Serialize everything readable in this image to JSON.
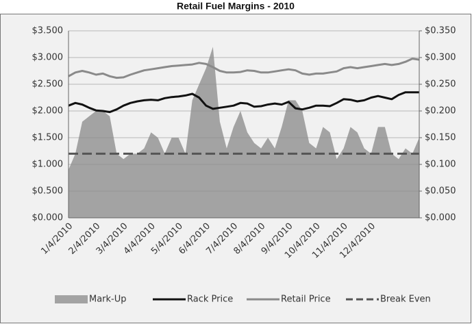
{
  "chart_data": {
    "type": "combo",
    "title": "Retail Fuel Margins - 2010",
    "categories": [
      "1/4/2010",
      null,
      null,
      null,
      "2/4/2010",
      null,
      null,
      null,
      "3/4/2010",
      null,
      null,
      null,
      "4/4/2010",
      null,
      null,
      null,
      "5/4/2010",
      null,
      null,
      null,
      "6/4/2010",
      null,
      null,
      null,
      "7/4/2010",
      null,
      null,
      null,
      "8/4/2010",
      null,
      null,
      null,
      "9/4/2010",
      null,
      null,
      null,
      "10/4/2010",
      null,
      null,
      null,
      "11/4/2010",
      null,
      null,
      null,
      "12/4/2010",
      null,
      null,
      null,
      null,
      null,
      null,
      null
    ],
    "series": [
      {
        "name": "Mark-Up",
        "type": "area",
        "axis": "y2",
        "color": "#a3a3a3",
        "values": [
          0.09,
          0.12,
          0.18,
          0.19,
          0.2,
          0.2,
          0.19,
          0.12,
          0.11,
          0.12,
          0.12,
          0.13,
          0.16,
          0.15,
          0.12,
          0.15,
          0.15,
          0.12,
          0.22,
          0.25,
          0.28,
          0.32,
          0.18,
          0.13,
          0.17,
          0.2,
          0.16,
          0.14,
          0.13,
          0.15,
          0.13,
          0.17,
          0.22,
          0.22,
          0.2,
          0.14,
          0.13,
          0.17,
          0.16,
          0.11,
          0.13,
          0.17,
          0.16,
          0.13,
          0.12,
          0.17,
          0.17,
          0.12,
          0.11,
          0.13,
          0.12,
          0.15
        ]
      },
      {
        "name": "Rack Price",
        "type": "line",
        "color": "#111111",
        "values": [
          2.1,
          2.15,
          2.12,
          2.06,
          2.01,
          2.0,
          1.98,
          2.03,
          2.1,
          2.15,
          2.18,
          2.2,
          2.21,
          2.2,
          2.24,
          2.26,
          2.27,
          2.29,
          2.32,
          2.25,
          2.1,
          2.04,
          2.06,
          2.08,
          2.1,
          2.15,
          2.14,
          2.08,
          2.09,
          2.12,
          2.14,
          2.12,
          2.17,
          2.05,
          2.03,
          2.06,
          2.1,
          2.1,
          2.09,
          2.15,
          2.22,
          2.21,
          2.18,
          2.2,
          2.25,
          2.28,
          2.25,
          2.22,
          2.3,
          2.35,
          2.35,
          2.35
        ]
      },
      {
        "name": "Retail Price",
        "type": "line",
        "color": "#8a8a8a",
        "values": [
          2.65,
          2.72,
          2.75,
          2.72,
          2.68,
          2.7,
          2.65,
          2.62,
          2.63,
          2.68,
          2.72,
          2.76,
          2.78,
          2.8,
          2.82,
          2.84,
          2.85,
          2.86,
          2.87,
          2.9,
          2.88,
          2.82,
          2.75,
          2.72,
          2.72,
          2.73,
          2.76,
          2.75,
          2.72,
          2.72,
          2.74,
          2.76,
          2.78,
          2.76,
          2.7,
          2.68,
          2.7,
          2.7,
          2.72,
          2.74,
          2.8,
          2.82,
          2.8,
          2.82,
          2.84,
          2.86,
          2.88,
          2.86,
          2.88,
          2.92,
          2.98,
          2.96
        ]
      },
      {
        "name": "Break Even",
        "type": "dashed",
        "axis": "y2",
        "color": "#555555",
        "values": [
          0.12,
          0.12,
          0.12,
          0.12,
          0.12,
          0.12,
          0.12,
          0.12,
          0.12,
          0.12,
          0.12,
          0.12,
          0.12,
          0.12,
          0.12,
          0.12,
          0.12,
          0.12,
          0.12,
          0.12,
          0.12,
          0.12,
          0.12,
          0.12,
          0.12,
          0.12,
          0.12,
          0.12,
          0.12,
          0.12,
          0.12,
          0.12,
          0.12,
          0.12,
          0.12,
          0.12,
          0.12,
          0.12,
          0.12,
          0.12,
          0.12,
          0.12,
          0.12,
          0.12,
          0.12,
          0.12,
          0.12,
          0.12,
          0.12,
          0.12,
          0.12,
          0.12
        ]
      }
    ],
    "ylim": [
      0,
      3.5
    ],
    "yticks": [
      {
        "value": 0,
        "label": "$0.000"
      },
      {
        "value": 0.5,
        "label": "$0.500"
      },
      {
        "value": 1,
        "label": "$1.000"
      },
      {
        "value": 1.5,
        "label": "$1.500"
      },
      {
        "value": 2,
        "label": "$2.000"
      },
      {
        "value": 2.5,
        "label": "$2.500"
      },
      {
        "value": 3,
        "label": "$3.000"
      },
      {
        "value": 3.5,
        "label": "$3.500"
      }
    ],
    "y2lim": [
      0,
      0.35
    ],
    "y2ticks": [
      {
        "value": 0,
        "label": "$0.000"
      },
      {
        "value": 0.05,
        "label": "$0.050"
      },
      {
        "value": 0.1,
        "label": "$0.100"
      },
      {
        "value": 0.15,
        "label": "$0.150"
      },
      {
        "value": 0.2,
        "label": "$0.200"
      },
      {
        "value": 0.25,
        "label": "$0.250"
      },
      {
        "value": 0.3,
        "label": "$0.300"
      },
      {
        "value": 0.35,
        "label": "$0.350"
      }
    ],
    "grid": true,
    "legend": "bottom"
  }
}
